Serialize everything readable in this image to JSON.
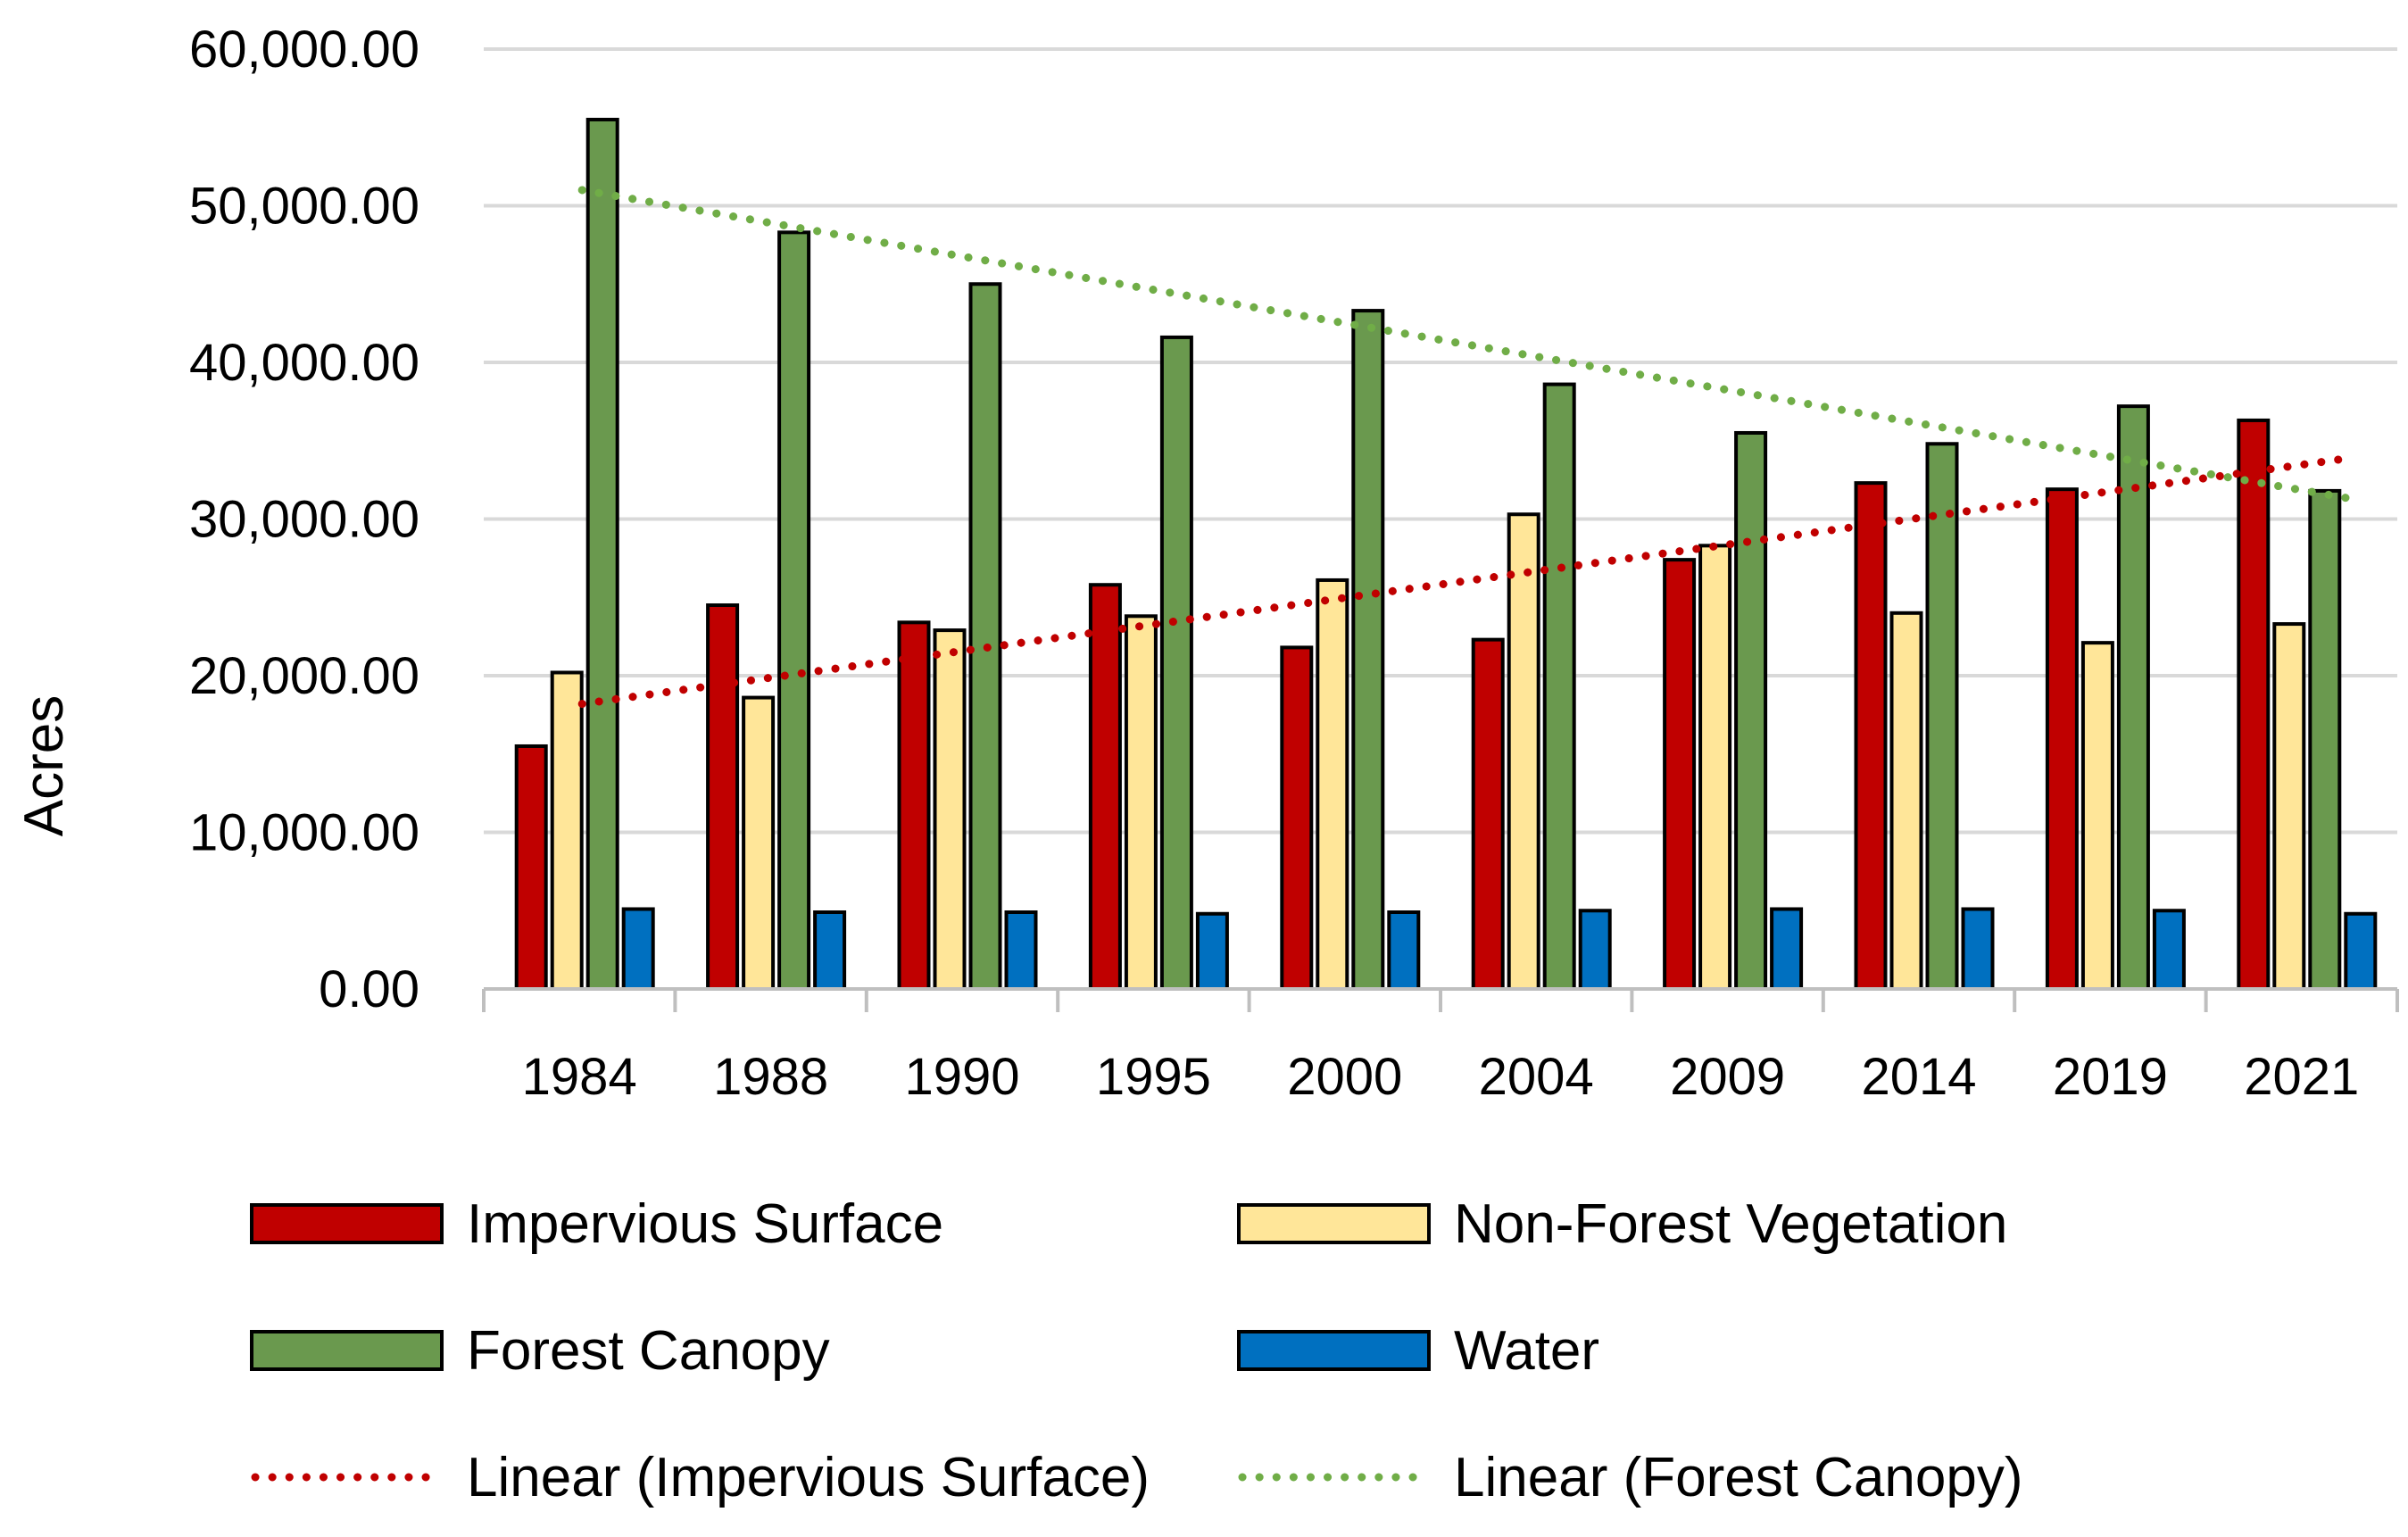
{
  "chart_data": {
    "type": "bar",
    "title": "",
    "xlabel": "",
    "ylabel": "Acres",
    "ylim": [
      0,
      60000
    ],
    "y_ticks": [
      0,
      10000,
      20000,
      30000,
      40000,
      50000,
      60000
    ],
    "y_tick_labels": [
      "0.00",
      "10,000.00",
      "20,000.00",
      "30,000.00",
      "40,000.00",
      "50,000.00",
      "60,000.00"
    ],
    "grid": true,
    "legend_position": "bottom",
    "categories": [
      "1984",
      "1988",
      "1990",
      "1995",
      "2000",
      "2004",
      "2009",
      "2014",
      "2019",
      "2021"
    ],
    "series": [
      {
        "name": "Impervious Surface",
        "color": "#c00000",
        "values": [
          15500,
          24500,
          23400,
          25800,
          21800,
          22300,
          27400,
          32300,
          31900,
          36300
        ]
      },
      {
        "name": "Non-Forest Vegetation",
        "color": "#ffe699",
        "values": [
          20200,
          18600,
          22900,
          23800,
          26100,
          30300,
          28300,
          24000,
          22100,
          23300
        ]
      },
      {
        "name": "Forest Canopy",
        "color": "#6a994e",
        "values": [
          55500,
          48300,
          45000,
          41600,
          43300,
          38600,
          35500,
          34800,
          37200,
          31800
        ]
      },
      {
        "name": "Water",
        "color": "#0070c0",
        "values": [
          5100,
          4900,
          4900,
          4800,
          4900,
          5000,
          5100,
          5100,
          5000,
          4800
        ]
      }
    ],
    "trendlines": [
      {
        "name": "Linear (Impervious Surface)",
        "color": "#c00000",
        "start": 18200,
        "end": 33900
      },
      {
        "name": "Linear (Forest Canopy)",
        "color": "#70ad47",
        "start": 51000,
        "end": 31300
      }
    ]
  }
}
